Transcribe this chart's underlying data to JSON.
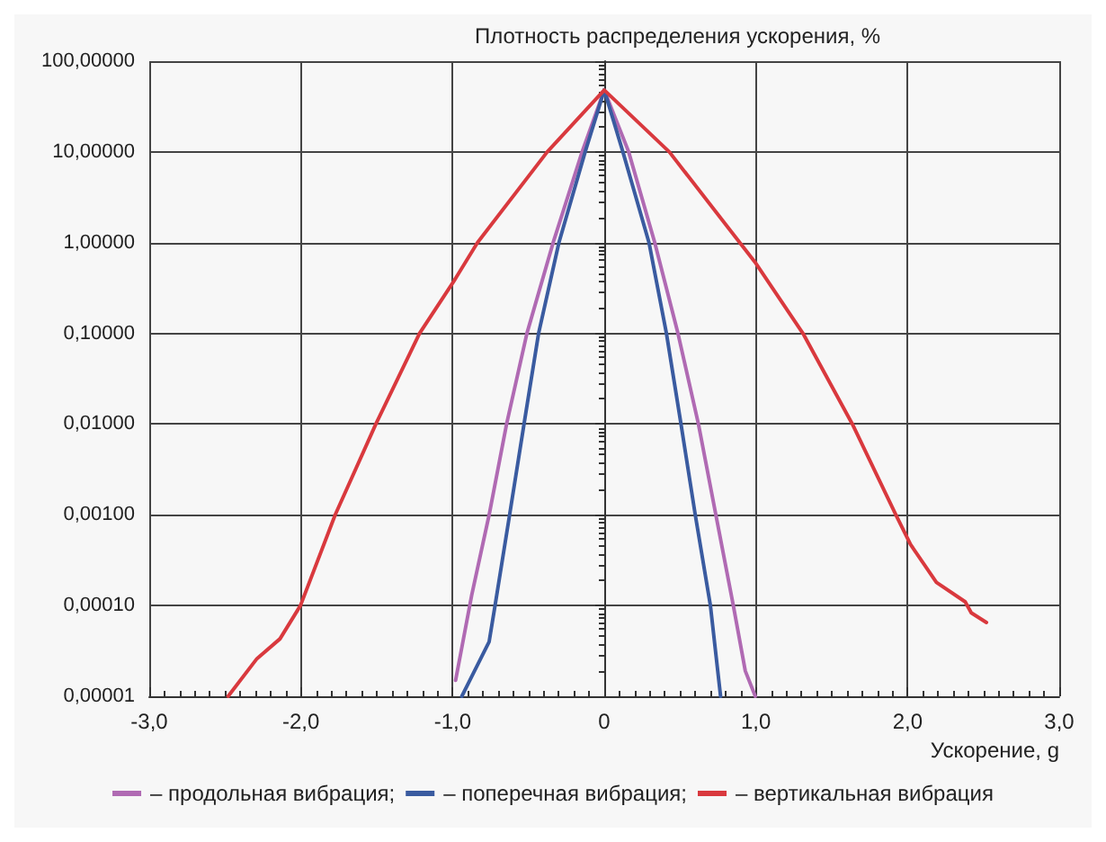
{
  "chart_data": {
    "type": "line",
    "ylabel": "Плотность распределения ускорения, %",
    "xlabel": "Ускорение, g",
    "xlim": [
      -3,
      3
    ],
    "xticks": [
      {
        "value": -3,
        "label": "-3,0"
      },
      {
        "value": -2,
        "label": "-2,0"
      },
      {
        "value": -1,
        "label": "-1,0"
      },
      0,
      {
        "value": 1,
        "label": "1,0"
      },
      {
        "value": 2,
        "label": "2,0"
      },
      {
        "value": 3,
        "label": "3,0"
      }
    ],
    "ylim": [
      1e-05,
      100
    ],
    "yticks": [
      {
        "value": 1e-05,
        "label": "0,00001"
      },
      {
        "value": 0.0001,
        "label": "0,00010"
      },
      {
        "value": 0.001,
        "label": "0,00100"
      },
      {
        "value": 0.01,
        "label": "0,01000"
      },
      {
        "value": 0.1,
        "label": "0,10000"
      },
      {
        "value": 1,
        "label": "1,00000"
      },
      {
        "value": 10,
        "label": "10,00000"
      },
      {
        "value": 100,
        "label": "100,00000"
      }
    ],
    "log": "y",
    "grid": true,
    "legend": "bottom",
    "marker": "none",
    "line_style": "solid",
    "series": [
      {
        "name": "– продольная вибрация;",
        "color": "#b06ab3",
        "x": [
          -0.98,
          -0.874,
          -0.759,
          -0.644,
          -0.51,
          -0.337,
          -0.146,
          0,
          0.161,
          0.333,
          0.486,
          0.621,
          0.736,
          0.851,
          0.93,
          0.996
        ],
        "values": [
          1.5e-05,
          0.00013,
          0.001,
          0.01,
          0.1,
          1,
          10,
          48,
          10,
          1,
          0.1,
          0.01,
          0.001,
          0.0001,
          1.9e-05,
          1e-05
        ]
      },
      {
        "name": "– поперечная вибрация;",
        "color": "#3a5ba0",
        "x": [
          -0.939,
          -0.759,
          -0.72,
          -0.624,
          -0.529,
          -0.433,
          -0.299,
          -0.126,
          0,
          0.123,
          0.295,
          0.41,
          0.506,
          0.6,
          0.7,
          0.767
        ],
        "values": [
          1e-05,
          4e-05,
          0.0001,
          0.001,
          0.01,
          0.1,
          1,
          10,
          48,
          10,
          1,
          0.1,
          0.01,
          0.001,
          0.0001,
          1e-05
        ]
      },
      {
        "name": "– вертикальная вибрация",
        "color": "#d9393e",
        "x": [
          -2.48,
          -2.29,
          -2.138,
          -2.003,
          -1.774,
          -1.506,
          -1.218,
          -0.99,
          -0.836,
          -0.376,
          0,
          0.429,
          1.0,
          1.31,
          1.636,
          1.923,
          2.02,
          2.19,
          2.38,
          2.42,
          2.52
        ],
        "values": [
          1e-05,
          2.6e-05,
          4.3e-05,
          0.0001,
          0.001,
          0.01,
          0.1,
          0.38,
          1,
          10,
          48,
          10,
          0.59,
          0.1,
          0.01,
          0.001,
          0.00047,
          0.00018,
          0.00011,
          8.3e-05,
          6.5e-05
        ]
      }
    ]
  }
}
